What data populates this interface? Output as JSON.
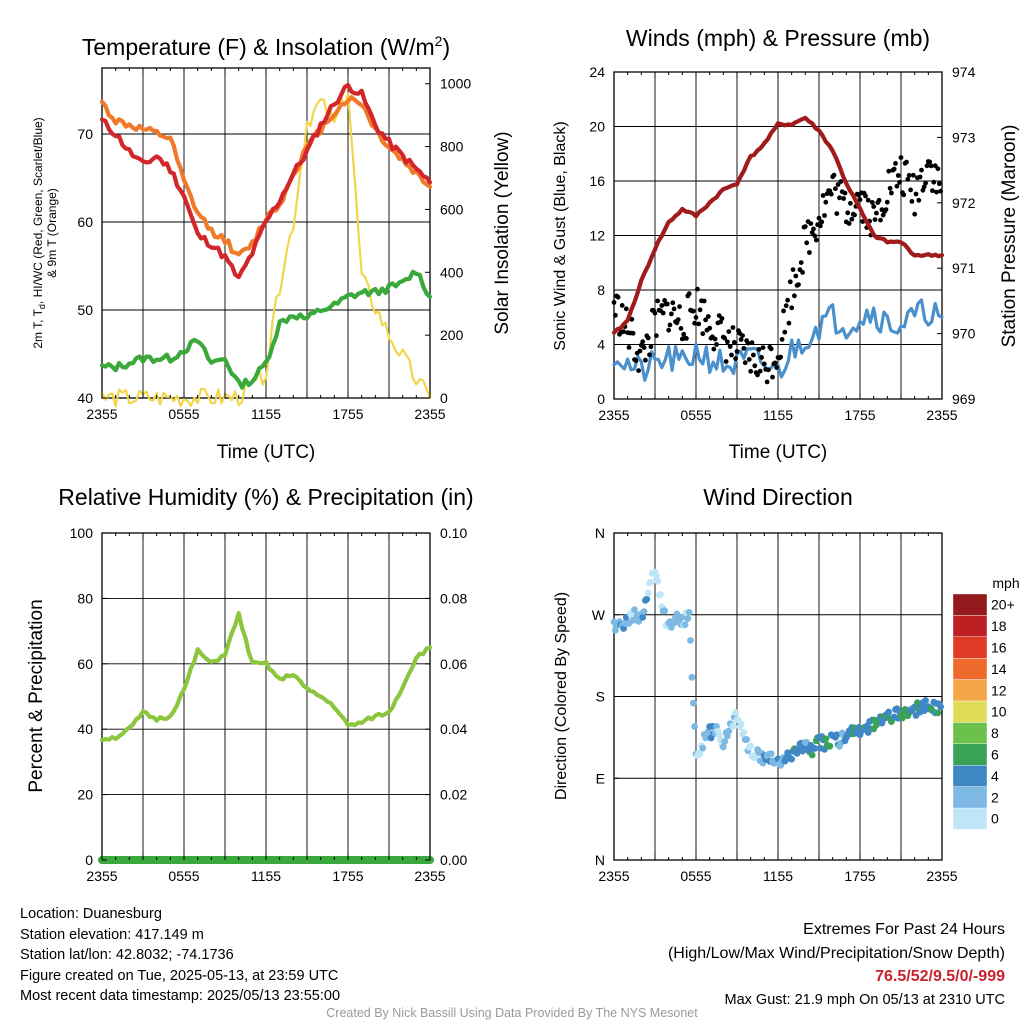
{
  "panels": {
    "temperature": {
      "title": "Temperature (F) & Insolation (W/m",
      "title_sup": "2",
      "title_end": ")",
      "ylabel_left_line1": "2m T, T",
      "ylabel_left_sub": "d",
      "ylabel_left_rest": ", HI/WC (Red, Green, Scarlet/Blue)",
      "ylabel_left_line2": "& 9m T (Orange)",
      "ylabel_right": "Solar Insolation (Yellow)",
      "xlabel": "Time (UTC)",
      "xticks": [
        "2355",
        "0555",
        "1155",
        "1755",
        "2355"
      ],
      "yticks_left": [
        "40",
        "50",
        "60",
        "70"
      ],
      "yticks_right": [
        "0",
        "200",
        "400",
        "600",
        "800",
        "1000"
      ]
    },
    "winds": {
      "title": "Winds (mph) & Pressure (mb)",
      "ylabel_left": "Sonic Wind & Gust (Blue, Black)",
      "ylabel_right": "Station Pressure (Maroon)",
      "xlabel": "Time (UTC)",
      "xticks": [
        "2355",
        "0555",
        "1155",
        "1755",
        "2355"
      ],
      "yticks_left": [
        "0",
        "4",
        "8",
        "12",
        "16",
        "20",
        "24"
      ],
      "yticks_right": [
        "969",
        "970",
        "971",
        "972",
        "973",
        "974"
      ]
    },
    "humidity": {
      "title": "Relative Humidity (%) & Precipitation (in)",
      "ylabel_left": "Percent & Precipitation",
      "xticks": [
        "2355",
        "0555",
        "1155",
        "1755",
        "2355"
      ],
      "yticks_left": [
        "0",
        "20",
        "40",
        "60",
        "80",
        "100"
      ],
      "yticks_right": [
        "0.00",
        "0.02",
        "0.04",
        "0.06",
        "0.08",
        "0.10"
      ]
    },
    "direction": {
      "title": "Wind Direction",
      "ylabel_left": "Direction (Colored By Speed)",
      "xticks": [
        "2355",
        "0555",
        "1155",
        "1755",
        "2355"
      ],
      "yticks_left": [
        "N",
        "E",
        "S",
        "W",
        "N"
      ],
      "colorbar_title": "mph",
      "colorbar_labels": [
        "0",
        "2",
        "4",
        "6",
        "8",
        "10",
        "12",
        "14",
        "16",
        "18",
        "20+"
      ],
      "colorbar_colors": [
        "#bfe6f7",
        "#7db9e3",
        "#3f87c5",
        "#3aa257",
        "#6cc04c",
        "#e0dc55",
        "#f4a548",
        "#ef6a2d",
        "#de3a26",
        "#bd1f22",
        "#931a1d"
      ]
    }
  },
  "chart_data": [
    {
      "type": "line",
      "title": "Temperature (F) & Insolation (W/m2)",
      "xlabel": "Time (UTC)",
      "ylabel": "2m T, Td, HI/WC (Red, Green, Scarlet/Blue) & 9m T (Orange)",
      "ylabel_right": "Solar Insolation (Yellow)",
      "x_hours": [
        0,
        1,
        2,
        3,
        4,
        5,
        6,
        7,
        8,
        9,
        10,
        11,
        12,
        13,
        14,
        15,
        16,
        17,
        18,
        19,
        20,
        21,
        22,
        23,
        24
      ],
      "ylim": [
        40,
        77.5
      ],
      "ylim_right": [
        0,
        1050
      ],
      "series": [
        {
          "name": "2m T",
          "color": "#d2262a",
          "axis": "left",
          "values": [
            71.5,
            70,
            68,
            66.5,
            67.5,
            66,
            63,
            58.5,
            57.5,
            56,
            53.5,
            56.5,
            60,
            62.5,
            65.5,
            68,
            71,
            73.5,
            75.5,
            74.5,
            71,
            69,
            67.5,
            66,
            64.5
          ]
        },
        {
          "name": "9m T",
          "color": "#f07a2a",
          "axis": "left",
          "values": [
            73.5,
            71.5,
            71,
            70.5,
            70,
            69.5,
            64.5,
            61,
            59,
            58,
            56,
            57.5,
            60.5,
            62,
            65.5,
            68.5,
            70.5,
            72.5,
            74,
            73.5,
            70.5,
            68.5,
            67,
            65.5,
            64
          ]
        },
        {
          "name": "Td",
          "color": "#3aa83a",
          "axis": "left",
          "values": [
            43.5,
            43.5,
            44,
            44.5,
            44.5,
            44.5,
            45.5,
            46.5,
            44,
            44.5,
            41.5,
            42,
            44,
            48.5,
            49.5,
            49,
            50,
            50.5,
            51.5,
            52,
            52,
            52.5,
            53,
            54.5,
            51.5
          ]
        },
        {
          "name": "Solar Insolation",
          "color": "#f2d64a",
          "axis": "right",
          "values": [
            0,
            0,
            0,
            0,
            0,
            0,
            0,
            0,
            0,
            0,
            2,
            35,
            85,
            360,
            560,
            880,
            940,
            870,
            980,
            380,
            290,
            200,
            130,
            55,
            0
          ]
        }
      ]
    },
    {
      "type": "line",
      "title": "Winds (mph) & Pressure (mb)",
      "xlabel": "Time (UTC)",
      "ylabel": "Sonic Wind & Gust (Blue, Black)",
      "ylabel_right": "Station Pressure (Maroon)",
      "x_hours": [
        0,
        1,
        2,
        3,
        4,
        5,
        6,
        7,
        8,
        9,
        10,
        11,
        12,
        13,
        14,
        15,
        16,
        17,
        18,
        19,
        20,
        21,
        22,
        23,
        24
      ],
      "ylim": [
        0,
        24
      ],
      "ylim_right": [
        969,
        974
      ],
      "series": [
        {
          "name": "Sonic Wind",
          "color": "#4a90cc",
          "axis": "left",
          "values": [
            3.5,
            2.5,
            2,
            2.5,
            3,
            2.5,
            3.5,
            3,
            2.5,
            2.5,
            3,
            2.5,
            2,
            3.5,
            4.5,
            5.5,
            6,
            5.5,
            6,
            6.5,
            5.5,
            5.5,
            6,
            6.5,
            6
          ]
        },
        {
          "name": "Gust",
          "color": "#000000",
          "axis": "left",
          "marker": "dot",
          "values": [
            7,
            5,
            3,
            5.5,
            6.5,
            5.5,
            7,
            5.5,
            4.5,
            3.5,
            3,
            2.5,
            3.5,
            8,
            11.5,
            13.5,
            15.5,
            14,
            15,
            13,
            15.5,
            16.5,
            15,
            17.5,
            15
          ]
        },
        {
          "name": "Station Pressure",
          "color": "#a01b1b",
          "axis": "right",
          "values": [
            970.0,
            970.2,
            970.8,
            971.3,
            971.7,
            971.9,
            971.8,
            972.0,
            972.2,
            972.3,
            972.7,
            972.9,
            973.2,
            973.2,
            973.3,
            973.1,
            972.8,
            972.3,
            971.9,
            971.5,
            971.4,
            971.4,
            971.2,
            971.2,
            971.2
          ]
        }
      ]
    },
    {
      "type": "line",
      "title": "Relative Humidity (%) & Precipitation (in)",
      "ylabel": "Percent & Precipitation",
      "x_hours": [
        0,
        1,
        2,
        3,
        4,
        5,
        6,
        7,
        8,
        9,
        10,
        11,
        12,
        13,
        14,
        15,
        16,
        17,
        18,
        19,
        20,
        21,
        22,
        23,
        24
      ],
      "ylim": [
        0,
        100
      ],
      "ylim_right": [
        0,
        0.1
      ],
      "series": [
        {
          "name": "Relative Humidity",
          "color": "#8cc63f",
          "axis": "left",
          "values": [
            37,
            37.5,
            40,
            45,
            43,
            44,
            52,
            64,
            60,
            63,
            75,
            60,
            60,
            55,
            57,
            52,
            50,
            47,
            41,
            42,
            44,
            45,
            53,
            62,
            65
          ]
        },
        {
          "name": "Precipitation",
          "color": "#3aa83a",
          "axis": "right",
          "values": [
            0,
            0,
            0,
            0,
            0,
            0,
            0,
            0,
            0,
            0,
            0,
            0,
            0,
            0,
            0,
            0,
            0,
            0,
            0,
            0,
            0,
            0,
            0,
            0,
            0
          ]
        }
      ]
    },
    {
      "type": "scatter",
      "title": "Wind Direction",
      "ylabel": "Direction (Colored By Speed)",
      "x_hours": [
        0,
        0.5,
        1,
        1.5,
        2,
        2.5,
        3,
        3.5,
        4,
        4.5,
        5,
        5.5,
        6,
        6.5,
        7,
        7.5,
        8,
        8.5,
        9,
        9.5,
        10,
        10.5,
        11,
        11.5,
        12,
        12.5,
        13,
        13.5,
        14,
        14.5,
        15,
        15.5,
        16,
        16.5,
        17,
        17.5,
        18,
        18.5,
        19,
        19.5,
        20,
        20.5,
        21,
        21.5,
        22,
        22.5,
        23,
        23.5,
        24
      ],
      "direction_deg": [
        260,
        255,
        262,
        270,
        265,
        300,
        320,
        280,
        255,
        268,
        262,
        270,
        110,
        130,
        140,
        145,
        125,
        150,
        160,
        135,
        120,
        115,
        108,
        112,
        105,
        110,
        118,
        120,
        125,
        122,
        130,
        128,
        135,
        130,
        138,
        140,
        142,
        145,
        150,
        155,
        158,
        160,
        162,
        165,
        165,
        168,
        170,
        168,
        165
      ],
      "speed_mph": [
        3,
        4,
        2,
        3,
        4,
        1,
        1,
        2,
        4,
        3,
        2,
        3,
        2,
        3,
        4,
        2,
        3,
        2,
        1,
        2,
        1,
        3,
        4,
        3,
        4,
        5,
        6,
        5,
        4,
        6,
        5,
        6,
        5,
        4,
        5,
        6,
        6,
        5,
        7,
        6,
        6,
        5,
        7,
        6,
        6,
        5,
        6,
        6,
        5
      ],
      "yticks": [
        "N",
        "E",
        "S",
        "W",
        "N"
      ],
      "ylim": [
        0,
        360
      ],
      "colorbar": {
        "title": "mph",
        "labels": [
          "0",
          "2",
          "4",
          "6",
          "8",
          "10",
          "12",
          "14",
          "16",
          "18",
          "20+"
        ]
      }
    }
  ],
  "footer": {
    "location": "Location: Duanesburg",
    "elevation": "Station elevation: 417.149 m",
    "latlon": "Station lat/lon: 42.8032; -74.1736",
    "created": "Figure created on Tue, 2025-05-13, at 23:59 UTC",
    "recent": "Most recent data timestamp: 2025/05/13 23:55:00",
    "extremes_title": "Extremes For Past 24 Hours",
    "extremes_legend": "(High/Low/Max Wind/Precipitation/Snow Depth)",
    "extremes_values": "76.5/52/9.5/0/-999",
    "max_gust": "Max Gust: 21.9 mph On 05/13 at 2310 UTC",
    "credit": "Created By Nick Bassill Using Data Provided By The NYS Mesonet"
  }
}
